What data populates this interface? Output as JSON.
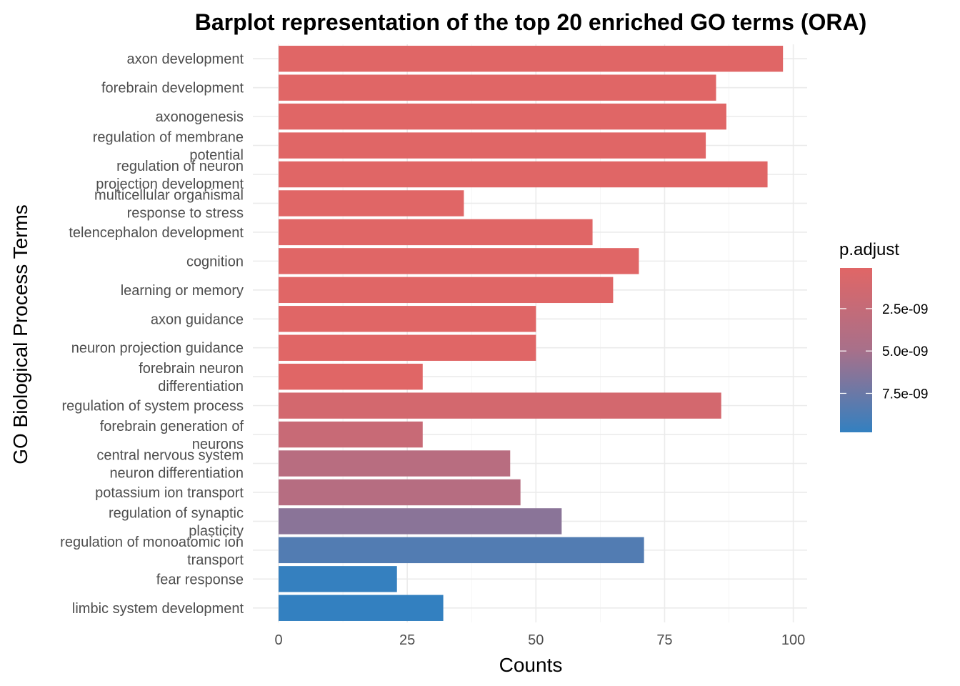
{
  "chart_data": {
    "type": "bar",
    "orientation": "horizontal",
    "title": "Barplot representation of the top 20 enriched GO terms (ORA)",
    "xlabel": "Counts",
    "ylabel": "GO Biological Process Terms",
    "xlim": [
      0,
      103
    ],
    "x_ticks": [
      "0",
      "25",
      "50",
      "75",
      "100"
    ],
    "x_tick_values": [
      0,
      25,
      50,
      75,
      100
    ],
    "grid": true,
    "legend": {
      "title": "p.adjust",
      "position": "right",
      "labels": [
        "2.5e-09",
        "5.0e-09",
        "7.5e-09"
      ],
      "label_values": [
        2.5e-09,
        5e-09,
        7.5e-09
      ],
      "range": [
        1e-10,
        9.8e-09
      ],
      "low_color": "#e06666",
      "high_color": "#3380c0"
    },
    "categories": [
      [
        "axon development"
      ],
      [
        "forebrain development"
      ],
      [
        "axonogenesis"
      ],
      [
        "regulation of membrane",
        "potential"
      ],
      [
        "regulation of neuron",
        "projection development"
      ],
      [
        "multicellular organismal",
        "response to stress"
      ],
      [
        "telencephalon development"
      ],
      [
        "cognition"
      ],
      [
        "learning or memory"
      ],
      [
        "axon guidance"
      ],
      [
        "neuron projection guidance"
      ],
      [
        "forebrain neuron",
        "differentiation"
      ],
      [
        "regulation of system process"
      ],
      [
        "forebrain generation of",
        "neurons"
      ],
      [
        "central nervous system",
        "neuron differentiation"
      ],
      [
        "potassium ion transport"
      ],
      [
        "regulation of synaptic",
        "plasticity"
      ],
      [
        "regulation of monoatomic ion",
        "transport"
      ],
      [
        "fear response"
      ],
      [
        "limbic system development"
      ]
    ],
    "values": [
      98,
      85,
      87,
      83,
      95,
      36,
      61,
      70,
      65,
      50,
      50,
      28,
      86,
      28,
      45,
      47,
      55,
      71,
      23,
      32
    ],
    "p_adjust": [
      1e-10,
      1e-10,
      1e-10,
      1e-10,
      1e-10,
      1e-10,
      1e-10,
      1e-10,
      1e-10,
      1e-10,
      1e-10,
      1e-10,
      1.2e-09,
      2.2e-09,
      3.6e-09,
      3.7e-09,
      6.2e-09,
      8.5e-09,
      9.7e-09,
      9.8e-09
    ]
  }
}
